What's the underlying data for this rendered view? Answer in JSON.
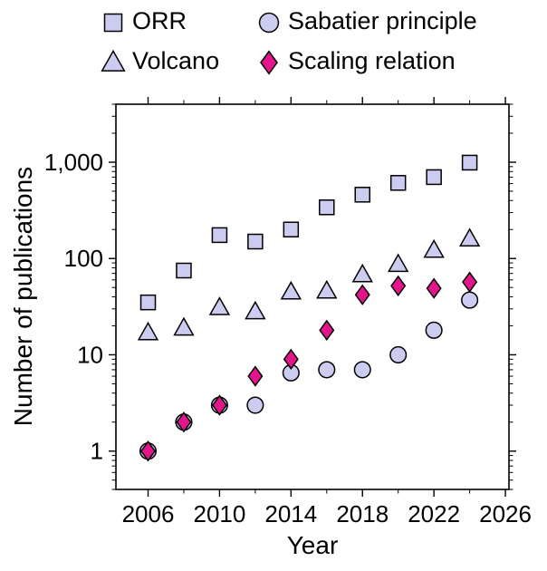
{
  "chart_data": {
    "type": "scatter",
    "x": [
      2006,
      2008,
      2010,
      2012,
      2014,
      2016,
      2018,
      2020,
      2022,
      2024
    ],
    "series": [
      {
        "name": "ORR",
        "marker": "square",
        "fill": "#ccccf0",
        "values": [
          35,
          75,
          175,
          150,
          200,
          340,
          460,
          610,
          700,
          990
        ]
      },
      {
        "name": "Sabatier principle",
        "marker": "circle",
        "fill": "#ccccf0",
        "values": [
          1,
          2,
          3,
          3,
          6.5,
          7,
          7,
          10,
          18,
          37
        ]
      },
      {
        "name": "Volcano",
        "marker": "triangle",
        "fill": "#ccccf0",
        "values": [
          17,
          19,
          31,
          28,
          45,
          46,
          68,
          87,
          122,
          160
        ]
      },
      {
        "name": "Scaling relation",
        "marker": "diamond",
        "fill": "#e4148c",
        "values": [
          1,
          2,
          3,
          6,
          9,
          18,
          42,
          52,
          49,
          57
        ]
      }
    ],
    "xlabel": "Year",
    "ylabel": "Number of publications",
    "yscale": "log",
    "xlim": [
      2004.2,
      2026.2
    ],
    "ylim": [
      0.4,
      4000
    ],
    "xticks": {
      "values": [
        2006,
        2010,
        2014,
        2018,
        2022,
        2026
      ],
      "labels": [
        "2006",
        "2010",
        "2014",
        "2018",
        "2022",
        "2026"
      ]
    },
    "yticks": {
      "values": [
        1,
        10,
        100,
        1000
      ],
      "labels": [
        "1",
        "10",
        "100",
        "1,000"
      ]
    },
    "marker_stroke": "#000000",
    "axis_color": "#000000",
    "legend_position": "top",
    "grid": false
  }
}
